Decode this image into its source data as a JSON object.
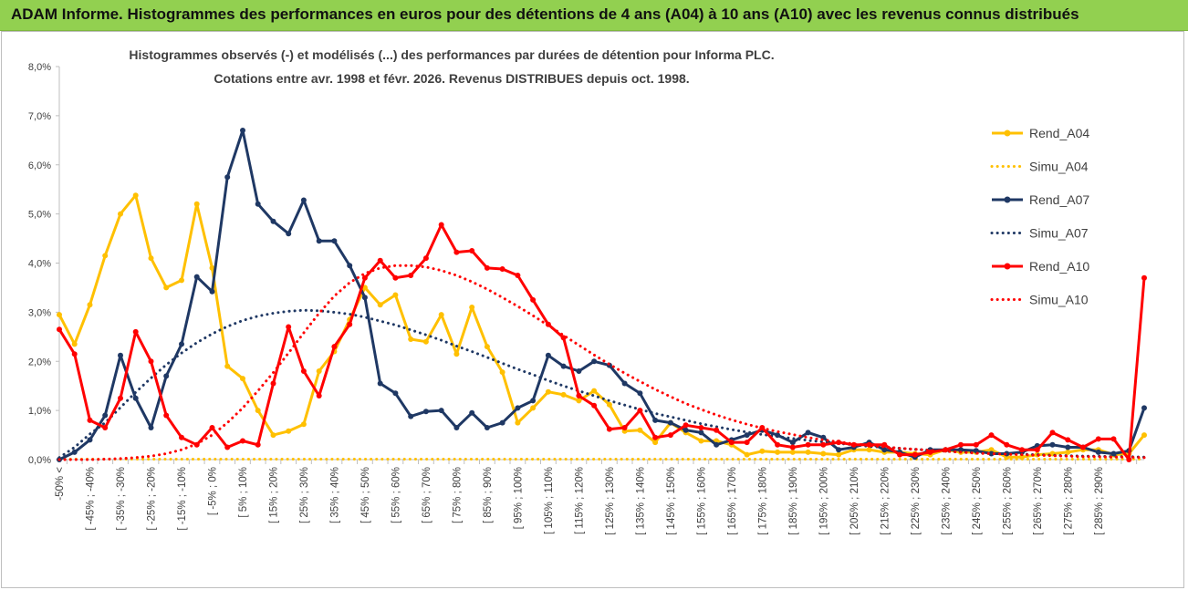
{
  "header": {
    "title": "ADAM Informe. Histogrammes des performances en euros pour des détentions de 4 ans (A04) à 10 ans (A10) avec les revenus connus distribués"
  },
  "chart_data": {
    "type": "line",
    "title_line1": "Histogrammes observés (-) et modélisés (...) des performances par durées de détention pour Informa PLC.",
    "title_line2": "Cotations entre avr. 1998 et févr. 2026. Revenus DISTRIBUES depuis oct. 1998.",
    "ylim": [
      0,
      8
    ],
    "y_ticks": [
      "0,0%",
      "1,0%",
      "2,0%",
      "3,0%",
      "4,0%",
      "5,0%",
      "6,0%",
      "7,0%",
      "8,0%"
    ],
    "x_labels": [
      "-50% <",
      "[ -45% ; -40%",
      "[ -35% ; -30%",
      "[ -25% ; -20%",
      "[ -15% ; -10%",
      "[ -5% ; 0%",
      "[ 5% ; 10%",
      "[ 15% ; 20%",
      "[ 25% ; 30%",
      "[ 35% ; 40%",
      "[ 45% ; 50%",
      "[ 55% ; 60%",
      "[ 65% ; 70%",
      "[ 75% ; 80%",
      "[ 85% ; 90%",
      "[ 95% ; 100%",
      "[ 105% ; 110%",
      "[ 115% ; 120%",
      "[ 125% ; 130%",
      "[ 135% ; 140%",
      "[ 145% ; 150%",
      "[ 155% ; 160%",
      "[ 165% ; 170%",
      "[ 175% ; 180%",
      "[ 185% ; 190%",
      "[ 195% ; 200%",
      "[ 205% ; 210%",
      "[ 215% ; 220%",
      "[ 225% ; 230%",
      "[ 235% ; 240%",
      "[ 245% ; 250%",
      "[ 255% ; 260%",
      "[ 265% ; 270%",
      "[ 275% ; 280%",
      "[ 285% ; 290%"
    ],
    "series": [
      {
        "name": "Rend_A04",
        "style": "solid",
        "color": "#ffc000",
        "values": [
          2.95,
          2.35,
          3.15,
          4.15,
          5.0,
          5.38,
          4.1,
          3.5,
          3.65,
          5.2,
          3.9,
          1.9,
          1.65,
          1.0,
          0.5,
          0.58,
          0.72,
          1.8,
          2.2,
          2.85,
          3.5,
          3.15,
          3.35,
          2.45,
          2.4,
          2.95,
          2.15,
          3.1,
          2.3,
          1.78,
          0.75,
          1.05,
          1.38,
          1.32,
          1.2,
          1.4,
          1.12,
          0.58,
          0.6,
          0.35,
          0.75,
          0.55,
          0.38,
          0.38,
          0.3,
          0.1,
          0.17,
          0.15,
          0.15,
          0.15,
          0.12,
          0.1,
          0.2,
          0.2,
          0.15,
          0.15,
          0.12,
          0.1,
          0.2,
          0.15,
          0.15,
          0.2,
          0.05,
          0.05,
          0.1,
          0.12,
          0.15,
          0.2,
          0.2,
          0.1,
          0.12,
          0.5
        ]
      },
      {
        "name": "Simu_A04",
        "style": "dotted",
        "color": "#ffc000",
        "values": [
          0.01,
          0.01,
          0.01,
          0.01,
          0.01,
          0.01,
          0.01,
          0.01,
          0.01,
          0.01,
          0.01,
          0.01,
          0.01,
          0.01,
          0.01,
          0.01,
          0.01,
          0.01,
          0.01,
          0.01,
          0.01,
          0.01,
          0.01,
          0.01,
          0.01,
          0.01,
          0.01,
          0.01,
          0.01,
          0.01,
          0.01,
          0.01,
          0.01,
          0.01,
          0.01,
          0.01,
          0.01,
          0.01,
          0.01,
          0.01,
          0.01,
          0.01,
          0.01,
          0.01,
          0.01,
          0.01,
          0.01,
          0.01,
          0.01,
          0.01,
          0.01,
          0.01,
          0.01,
          0.01,
          0.01,
          0.01,
          0.01,
          0.01,
          0.01,
          0.01,
          0.01,
          0.01,
          0.01,
          0.01,
          0.01,
          0.01,
          0.01,
          0.01,
          0.01,
          0.01,
          0.01,
          0.01
        ]
      },
      {
        "name": "Rend_A07",
        "style": "solid",
        "color": "#1f3864",
        "values": [
          0.0,
          0.15,
          0.4,
          0.9,
          2.12,
          1.25,
          0.65,
          1.7,
          2.35,
          3.72,
          3.42,
          5.75,
          6.7,
          5.2,
          4.85,
          4.6,
          5.28,
          4.45,
          4.45,
          3.95,
          3.3,
          1.55,
          1.35,
          0.88,
          0.98,
          1.0,
          0.65,
          0.95,
          0.65,
          0.75,
          1.05,
          1.2,
          2.12,
          1.9,
          1.8,
          2.0,
          1.92,
          1.55,
          1.35,
          0.8,
          0.75,
          0.6,
          0.55,
          0.3,
          0.4,
          0.5,
          0.6,
          0.5,
          0.35,
          0.55,
          0.45,
          0.2,
          0.25,
          0.35,
          0.2,
          0.15,
          0.05,
          0.2,
          0.2,
          0.2,
          0.18,
          0.12,
          0.12,
          0.15,
          0.28,
          0.3,
          0.25,
          0.25,
          0.15,
          0.12,
          0.18,
          1.05
        ]
      },
      {
        "name": "Simu_A07",
        "style": "dotted",
        "color": "#1f3864",
        "values": [
          0.04,
          0.25,
          0.52,
          0.75,
          1.06,
          1.37,
          1.66,
          1.93,
          2.17,
          2.38,
          2.56,
          2.71,
          2.83,
          2.92,
          2.98,
          3.02,
          3.04,
          3.03,
          3.0,
          2.96,
          2.9,
          2.82,
          2.74,
          2.64,
          2.54,
          2.43,
          2.31,
          2.2,
          2.08,
          1.96,
          1.84,
          1.73,
          1.61,
          1.5,
          1.4,
          1.3,
          1.2,
          1.11,
          1.02,
          0.94,
          0.87,
          0.8,
          0.73,
          0.67,
          0.61,
          0.56,
          0.51,
          0.47,
          0.43,
          0.39,
          0.36,
          0.33,
          0.3,
          0.27,
          0.25,
          0.23,
          0.21,
          0.19,
          0.17,
          0.16,
          0.14,
          0.13,
          0.12,
          0.11,
          0.1,
          0.09,
          0.08,
          0.07,
          0.07,
          0.06,
          0.06,
          0.05
        ]
      },
      {
        "name": "Rend_A10",
        "style": "solid",
        "color": "#ff0000",
        "values": [
          2.65,
          2.15,
          0.8,
          0.65,
          1.25,
          2.6,
          2.0,
          0.9,
          0.45,
          0.3,
          0.65,
          0.25,
          0.38,
          0.3,
          1.55,
          2.7,
          1.8,
          1.3,
          2.3,
          2.75,
          3.7,
          4.05,
          3.7,
          3.75,
          4.1,
          4.78,
          4.22,
          4.25,
          3.9,
          3.88,
          3.75,
          3.25,
          2.75,
          2.48,
          1.3,
          1.1,
          0.62,
          0.65,
          1.0,
          0.45,
          0.5,
          0.7,
          0.65,
          0.6,
          0.35,
          0.35,
          0.65,
          0.3,
          0.25,
          0.3,
          0.3,
          0.35,
          0.3,
          0.3,
          0.3,
          0.1,
          0.1,
          0.15,
          0.2,
          0.3,
          0.3,
          0.5,
          0.3,
          0.2,
          0.2,
          0.55,
          0.4,
          0.25,
          0.42,
          0.42,
          0.0,
          3.7
        ]
      },
      {
        "name": "Simu_A10",
        "style": "dotted",
        "color": "#ff0000",
        "values": [
          0.0,
          0.0,
          0.0,
          0.01,
          0.02,
          0.04,
          0.07,
          0.12,
          0.2,
          0.32,
          0.5,
          0.75,
          1.05,
          1.4,
          1.77,
          2.17,
          2.58,
          2.98,
          3.33,
          3.6,
          3.79,
          3.9,
          3.95,
          3.95,
          3.92,
          3.85,
          3.75,
          3.62,
          3.47,
          3.3,
          3.12,
          2.93,
          2.73,
          2.53,
          2.33,
          2.13,
          1.94,
          1.76,
          1.59,
          1.43,
          1.28,
          1.14,
          1.02,
          0.91,
          0.81,
          0.72,
          0.64,
          0.57,
          0.51,
          0.45,
          0.4,
          0.36,
          0.32,
          0.29,
          0.26,
          0.23,
          0.21,
          0.19,
          0.17,
          0.15,
          0.13,
          0.12,
          0.11,
          0.1,
          0.09,
          0.08,
          0.07,
          0.06,
          0.06,
          0.05,
          0.05,
          0.04
        ]
      }
    ],
    "legend": {
      "position": "right"
    },
    "grid": false
  }
}
